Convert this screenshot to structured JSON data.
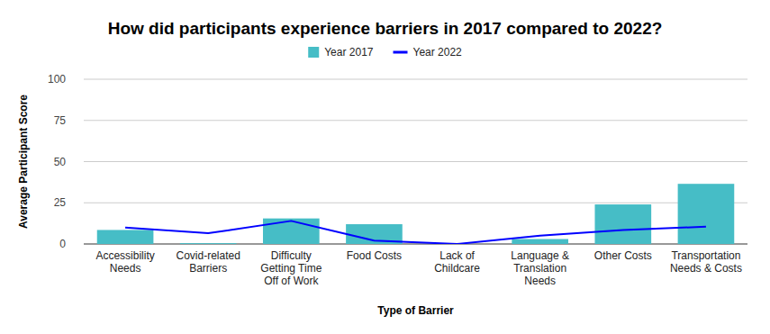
{
  "chart_data": {
    "type": "bar",
    "title": "How did participants experience barriers in 2017 compared to 2022?",
    "x_label": "Type of Barrier",
    "y_label": "Average Participant Score",
    "categories": [
      "Accessibility Needs",
      "Covid-related Barriers",
      "Difficulty Getting Time Off of Work",
      "Food Costs",
      "Lack of Childcare",
      "Language & Translation Needs",
      "Other Costs",
      "Transportation Needs & Costs"
    ],
    "series": [
      {
        "name": "Year 2017",
        "type": "bar",
        "color": "#46bdc6",
        "values": [
          8.5,
          0.5,
          15.5,
          12,
          0,
          3,
          24,
          36.5
        ]
      },
      {
        "name": "Year 2022",
        "type": "line",
        "color": "#0000ff",
        "values": [
          10,
          6.5,
          14,
          2,
          0,
          5,
          8.5,
          10.5
        ]
      }
    ],
    "ylim": [
      0,
      100
    ],
    "yticks": [
      0,
      25,
      50,
      75,
      100
    ],
    "grid": true,
    "legend": "top"
  }
}
